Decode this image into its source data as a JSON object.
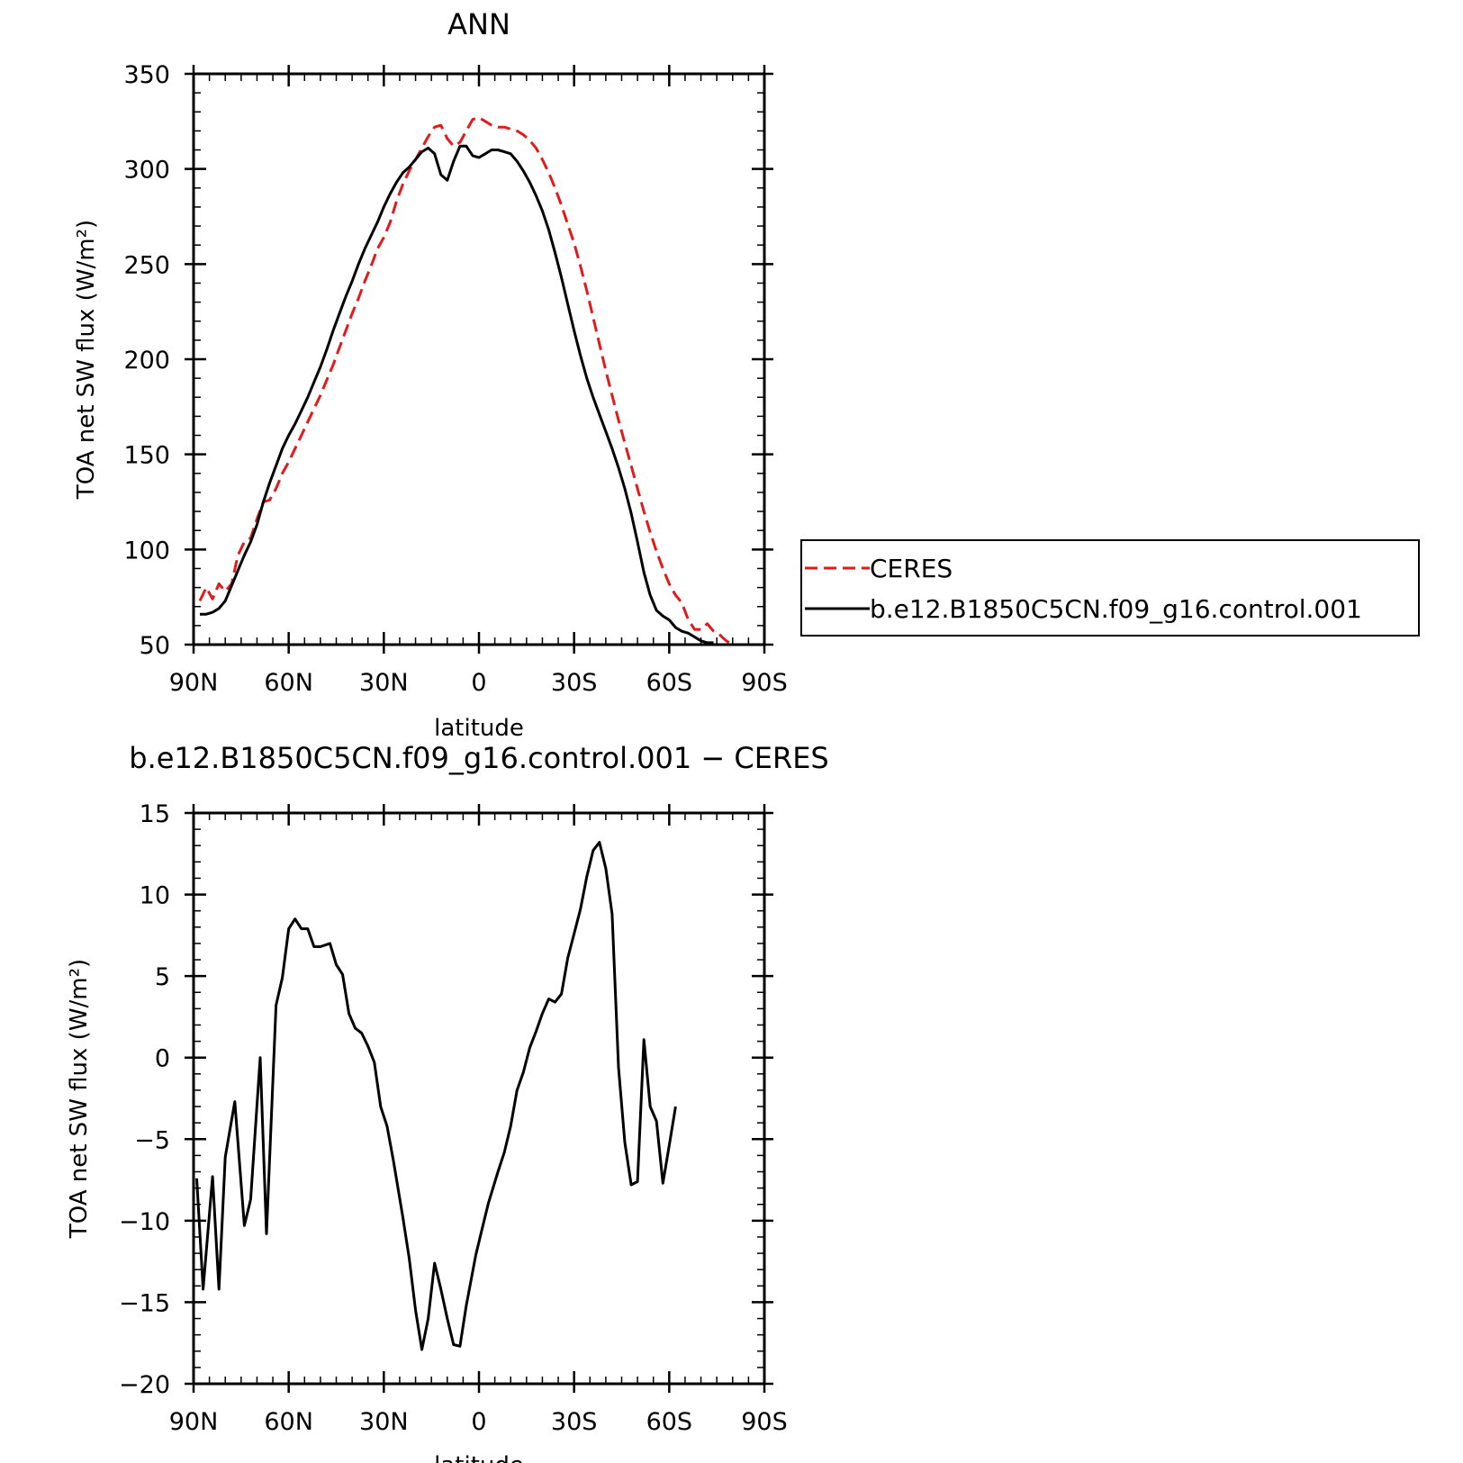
{
  "chart_data": [
    {
      "type": "line",
      "title": "ANN",
      "xlabel": "latitude",
      "ylabel": "TOA net SW flux (W/m²)",
      "xlim": [
        90,
        -90
      ],
      "ylim": [
        50,
        350
      ],
      "x_ticks": [
        {
          "value": 90,
          "label": "90N"
        },
        {
          "value": 60,
          "label": "60N"
        },
        {
          "value": 30,
          "label": "30N"
        },
        {
          "value": 0,
          "label": "0"
        },
        {
          "value": -30,
          "label": "30S"
        },
        {
          "value": -60,
          "label": "60S"
        },
        {
          "value": -90,
          "label": "90S"
        }
      ],
      "y_ticks": [
        50,
        100,
        150,
        200,
        250,
        300,
        350
      ],
      "y_tick_labels": [
        "50",
        "100",
        "150",
        "200",
        "250",
        "300",
        "350"
      ],
      "legend": {
        "placement": "right",
        "border": true
      },
      "series": [
        {
          "name": "CERES",
          "color": "#e31a1c",
          "dash": "dashed",
          "points": [
            [
              88,
              73
            ],
            [
              86,
              80
            ],
            [
              84,
              74
            ],
            [
              82,
              82
            ],
            [
              80,
              78
            ],
            [
              78,
              82
            ],
            [
              76,
              97
            ],
            [
              74,
              104
            ],
            [
              72,
              106
            ],
            [
              70,
              116
            ],
            [
              68,
              125
            ],
            [
              66,
              126
            ],
            [
              64,
              132
            ],
            [
              62,
              140
            ],
            [
              60,
              146
            ],
            [
              58,
              153
            ],
            [
              56,
              160
            ],
            [
              54,
              167
            ],
            [
              52,
              174
            ],
            [
              50,
              181
            ],
            [
              48,
              189
            ],
            [
              46,
              197
            ],
            [
              44,
              206
            ],
            [
              42,
              215
            ],
            [
              40,
              224
            ],
            [
              38,
              232
            ],
            [
              36,
              241
            ],
            [
              34,
              249
            ],
            [
              32,
              258
            ],
            [
              30,
              264
            ],
            [
              28,
              272
            ],
            [
              26,
              283
            ],
            [
              24,
              292
            ],
            [
              22,
              299
            ],
            [
              20,
              305
            ],
            [
              18,
              311
            ],
            [
              16,
              317
            ],
            [
              14,
              322
            ],
            [
              12,
              323
            ],
            [
              10,
              316
            ],
            [
              8,
              312
            ],
            [
              6,
              314
            ],
            [
              4,
              320
            ],
            [
              2,
              326
            ],
            [
              0,
              327
            ],
            [
              -2,
              325
            ],
            [
              -4,
              323
            ],
            [
              -6,
              322
            ],
            [
              -8,
              322
            ],
            [
              -10,
              321
            ],
            [
              -12,
              320
            ],
            [
              -14,
              318
            ],
            [
              -16,
              315
            ],
            [
              -18,
              311
            ],
            [
              -20,
              305
            ],
            [
              -22,
              298
            ],
            [
              -24,
              290
            ],
            [
              -26,
              281
            ],
            [
              -28,
              271
            ],
            [
              -30,
              261
            ],
            [
              -32,
              249
            ],
            [
              -34,
              236
            ],
            [
              -36,
              222
            ],
            [
              -38,
              208
            ],
            [
              -40,
              194
            ],
            [
              -42,
              181
            ],
            [
              -44,
              168
            ],
            [
              -46,
              156
            ],
            [
              -48,
              144
            ],
            [
              -50,
              132
            ],
            [
              -52,
              120
            ],
            [
              -54,
              109
            ],
            [
              -56,
              99
            ],
            [
              -58,
              90
            ],
            [
              -60,
              82
            ],
            [
              -62,
              76
            ],
            [
              -64,
              72
            ],
            [
              -66,
              63
            ],
            [
              -68,
              58
            ],
            [
              -70,
              58
            ],
            [
              -72,
              61
            ],
            [
              -74,
              57
            ],
            [
              -76,
              55
            ],
            [
              -78,
              52
            ],
            [
              -80,
              50
            ]
          ]
        },
        {
          "name": "b.e12.B1850C5CN.f09_g16.control.001",
          "color": "#000000",
          "dash": "solid",
          "points": [
            [
              88,
              66
            ],
            [
              86,
              66
            ],
            [
              84,
              67
            ],
            [
              82,
              69
            ],
            [
              80,
              73
            ],
            [
              78,
              81
            ],
            [
              76,
              89
            ],
            [
              74,
              97
            ],
            [
              72,
              104
            ],
            [
              70,
              113
            ],
            [
              68,
              125
            ],
            [
              66,
              135
            ],
            [
              64,
              144
            ],
            [
              62,
              153
            ],
            [
              60,
              160
            ],
            [
              58,
              166
            ],
            [
              56,
              173
            ],
            [
              54,
              180
            ],
            [
              52,
              188
            ],
            [
              50,
              196
            ],
            [
              48,
              205
            ],
            [
              46,
              215
            ],
            [
              44,
              224
            ],
            [
              42,
              233
            ],
            [
              40,
              241
            ],
            [
              38,
              250
            ],
            [
              36,
              258
            ],
            [
              34,
              265
            ],
            [
              32,
              272
            ],
            [
              30,
              280
            ],
            [
              28,
              287
            ],
            [
              26,
              293
            ],
            [
              24,
              298
            ],
            [
              22,
              301
            ],
            [
              20,
              305
            ],
            [
              18,
              309
            ],
            [
              16,
              311
            ],
            [
              14,
              308
            ],
            [
              12,
              297
            ],
            [
              10,
              294
            ],
            [
              8,
              304
            ],
            [
              6,
              312
            ],
            [
              4,
              312
            ],
            [
              2,
              307
            ],
            [
              0,
              306
            ],
            [
              -2,
              308
            ],
            [
              -4,
              310
            ],
            [
              -6,
              310
            ],
            [
              -8,
              309
            ],
            [
              -10,
              308
            ],
            [
              -12,
              304
            ],
            [
              -14,
              299
            ],
            [
              -16,
              293
            ],
            [
              -18,
              286
            ],
            [
              -20,
              278
            ],
            [
              -22,
              268
            ],
            [
              -24,
              256
            ],
            [
              -26,
              243
            ],
            [
              -28,
              229
            ],
            [
              -30,
              215
            ],
            [
              -32,
              202
            ],
            [
              -34,
              190
            ],
            [
              -36,
              180
            ],
            [
              -38,
              171
            ],
            [
              -40,
              162
            ],
            [
              -42,
              153
            ],
            [
              -44,
              143
            ],
            [
              -46,
              132
            ],
            [
              -48,
              119
            ],
            [
              -50,
              104
            ],
            [
              -52,
              88
            ],
            [
              -54,
              76
            ],
            [
              -56,
              68
            ],
            [
              -58,
              65
            ],
            [
              -60,
              63
            ],
            [
              -62,
              59
            ],
            [
              -64,
              57
            ],
            [
              -66,
              56
            ],
            [
              -68,
              54
            ],
            [
              -70,
              52
            ],
            [
              -72,
              51
            ],
            [
              -74,
              51
            ]
          ]
        }
      ]
    },
    {
      "type": "line",
      "title": "b.e12.B1850C5CN.f09_g16.control.001 − CERES",
      "xlabel": "latitude",
      "ylabel": "TOA net SW flux (W/m²)",
      "xlim": [
        90,
        -90
      ],
      "ylim": [
        -20,
        15
      ],
      "x_ticks": [
        {
          "value": 90,
          "label": "90N"
        },
        {
          "value": 60,
          "label": "60N"
        },
        {
          "value": 30,
          "label": "30N"
        },
        {
          "value": 0,
          "label": "0"
        },
        {
          "value": -30,
          "label": "30S"
        },
        {
          "value": -60,
          "label": "60S"
        },
        {
          "value": -90,
          "label": "90S"
        }
      ],
      "y_ticks": [
        -20,
        -15,
        -10,
        -5,
        0,
        5,
        10,
        15
      ],
      "y_tick_labels": [
        "−20",
        "−15",
        "−10",
        "−5",
        "0",
        "5",
        "10",
        "15"
      ],
      "series": [
        {
          "color": "#000000",
          "dash": "solid",
          "points": [
            [
              89,
              -7.4
            ],
            [
              87,
              -14.2
            ],
            [
              84,
              -7.3
            ],
            [
              82,
              -14.2
            ],
            [
              80,
              -6.1
            ],
            [
              77,
              -2.7
            ],
            [
              74,
              -10.3
            ],
            [
              72,
              -8.7
            ],
            [
              69,
              0
            ],
            [
              67,
              -10.8
            ],
            [
              64,
              3.2
            ],
            [
              62,
              4.9
            ],
            [
              60,
              7.9
            ],
            [
              58,
              8.5
            ],
            [
              56,
              7.9
            ],
            [
              54,
              7.9
            ],
            [
              52,
              6.8
            ],
            [
              50,
              6.8
            ],
            [
              47,
              7.0
            ],
            [
              45,
              5.7
            ],
            [
              43,
              5.1
            ],
            [
              41,
              2.7
            ],
            [
              39,
              1.8
            ],
            [
              37,
              1.5
            ],
            [
              35,
              0.7
            ],
            [
              33,
              -0.3
            ],
            [
              31,
              -3.0
            ],
            [
              29,
              -4.2
            ],
            [
              27,
              -6.3
            ],
            [
              24,
              -9.8
            ],
            [
              22,
              -12.3
            ],
            [
              20,
              -15.5
            ],
            [
              18,
              -17.9
            ],
            [
              16,
              -16.0
            ],
            [
              14,
              -12.6
            ],
            [
              12,
              -14.2
            ],
            [
              10,
              -16.0
            ],
            [
              8,
              -17.6
            ],
            [
              6,
              -17.7
            ],
            [
              4,
              -15.2
            ],
            [
              1,
              -12.1
            ],
            [
              -1,
              -10.5
            ],
            [
              -3,
              -8.9
            ],
            [
              -6,
              -7.0
            ],
            [
              -8,
              -5.8
            ],
            [
              -10,
              -4.2
            ],
            [
              -12,
              -2.0
            ],
            [
              -14,
              -0.9
            ],
            [
              -16,
              0.6
            ],
            [
              -18,
              1.6
            ],
            [
              -20,
              2.7
            ],
            [
              -22,
              3.6
            ],
            [
              -24,
              3.4
            ],
            [
              -26,
              3.9
            ],
            [
              -28,
              6.1
            ],
            [
              -30,
              7.6
            ],
            [
              -32,
              9.1
            ],
            [
              -34,
              11.1
            ],
            [
              -36,
              12.7
            ],
            [
              -38,
              13.2
            ],
            [
              -40,
              11.6
            ],
            [
              -42,
              8.8
            ],
            [
              -44,
              -0.6
            ],
            [
              -46,
              -5.2
            ],
            [
              -48,
              -7.8
            ],
            [
              -50,
              -7.6
            ],
            [
              -52,
              1.1
            ],
            [
              -54,
              -3.0
            ],
            [
              -56,
              -3.9
            ],
            [
              -58,
              -7.7
            ],
            [
              -60,
              -5.4
            ],
            [
              -62,
              -3.0
            ]
          ]
        }
      ]
    }
  ]
}
